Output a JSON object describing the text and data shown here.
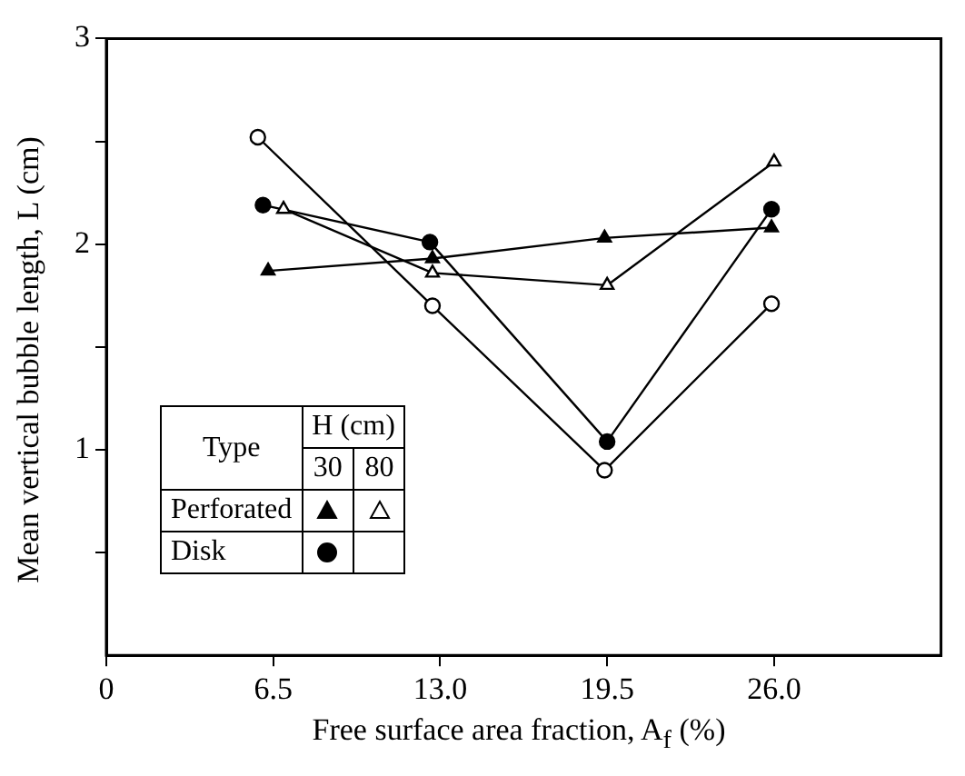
{
  "chart_data": {
    "type": "line",
    "xlabel": "Free surface area fraction, A$_{f}$ (%)",
    "ylabel": "Mean vertical bubble length, L (cm)",
    "xlim": [
      0,
      32.5
    ],
    "xticks": [
      0,
      6.5,
      {
        "value": 13,
        "label": "13.0"
      },
      19.5,
      {
        "value": 26,
        "label": "26.0"
      }
    ],
    "ylim": [
      0,
      3
    ],
    "yticks": [
      {
        "value": 0.5,
        "label": null
      },
      1,
      {
        "value": 1.5,
        "label": null
      },
      2,
      {
        "value": 2.5,
        "label": null
      },
      3
    ],
    "grid": false,
    "line_style": "solid",
    "annotations": [
      "Type",
      "H (cm)",
      "30",
      "80",
      "Perforated",
      "Disk"
    ],
    "series": [
      {
        "color": "#000000",
        "marker": "triangle",
        "x": [
          6.3,
          12.7,
          19.4,
          25.9
        ],
        "values": [
          1.87,
          1.93,
          2.03,
          2.08
        ]
      },
      {
        "color": "#000000",
        "marker": "triangle",
        "x": [
          6.9,
          12.7,
          19.5,
          26.0
        ],
        "values": [
          2.17,
          1.86,
          1.8,
          2.4
        ]
      },
      {
        "color": "#000000",
        "marker": "circle",
        "x": [
          6.1,
          12.6,
          19.5,
          25.9
        ],
        "values": [
          2.19,
          2.01,
          1.04,
          2.17
        ]
      },
      {
        "color": "#000000",
        "marker": "circle",
        "x": [
          5.9,
          12.7,
          19.4,
          25.9
        ],
        "values": [
          2.52,
          1.7,
          0.9,
          1.71
        ]
      }
    ]
  }
}
